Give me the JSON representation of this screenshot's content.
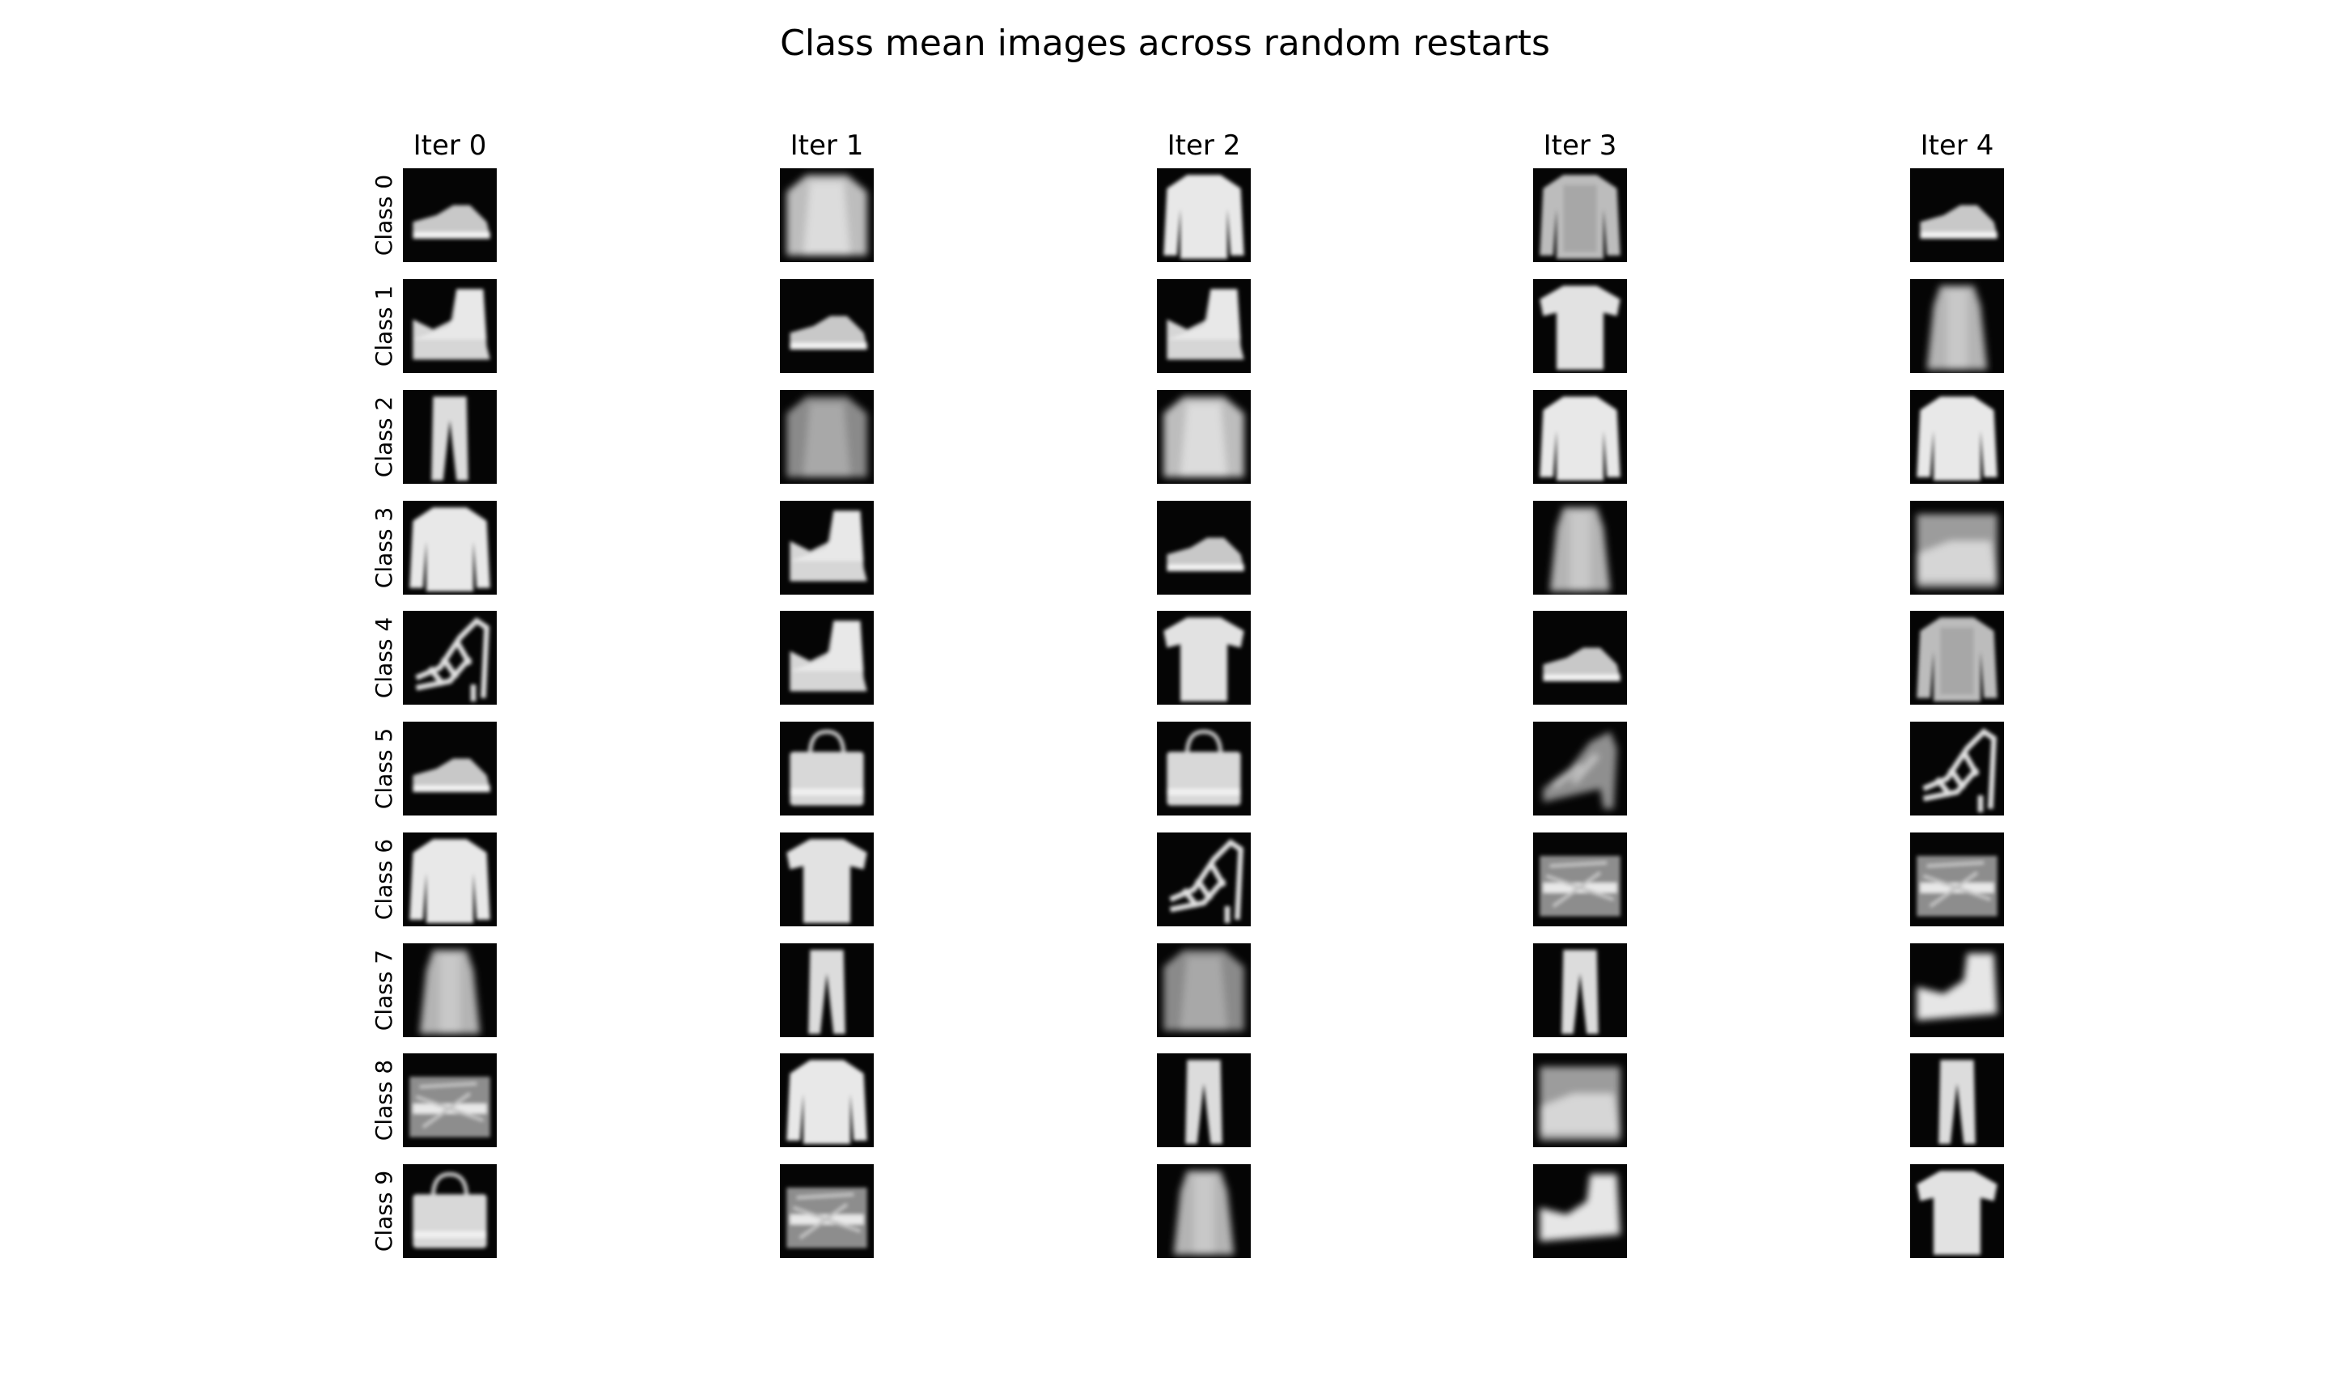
{
  "chart_data": {
    "type": "heatmap",
    "title": "Class mean images across random restarts",
    "column_titles": [
      "Iter 0",
      "Iter 1",
      "Iter 2",
      "Iter 3",
      "Iter 4"
    ],
    "row_labels": [
      "Class 0",
      "Class 1",
      "Class 2",
      "Class 3",
      "Class 4",
      "Class 5",
      "Class 6",
      "Class 7",
      "Class 8",
      "Class 9"
    ],
    "colormap": "gray",
    "axes": "off",
    "cells": [
      [
        "sneaker",
        "pullover-faint",
        "pullover",
        "pullover-textured",
        "sneaker"
      ],
      [
        "ankle-boot",
        "sneaker",
        "ankle-boot",
        "tshirt",
        "dress"
      ],
      [
        "trouser",
        "pullover-dark",
        "pullover-faint",
        "pullover",
        "pullover"
      ],
      [
        "pullover",
        "ankle-boot",
        "sneaker",
        "dress",
        "bag-mixed"
      ],
      [
        "sandal",
        "ankle-boot",
        "tshirt",
        "sneaker",
        "pullover-textured"
      ],
      [
        "sneaker",
        "bag",
        "bag",
        "sandal-faint",
        "sandal"
      ],
      [
        "pullover",
        "tshirt",
        "sandal",
        "bag-noisy",
        "bag-noisy"
      ],
      [
        "dress",
        "trouser",
        "pullover-dark",
        "trouser",
        "ankle-boot-soft"
      ],
      [
        "bag-noisy",
        "pullover",
        "trouser",
        "bag-mixed",
        "trouser"
      ],
      [
        "bag",
        "bag-noisy",
        "dress",
        "ankle-boot-soft",
        "tshirt"
      ]
    ]
  }
}
